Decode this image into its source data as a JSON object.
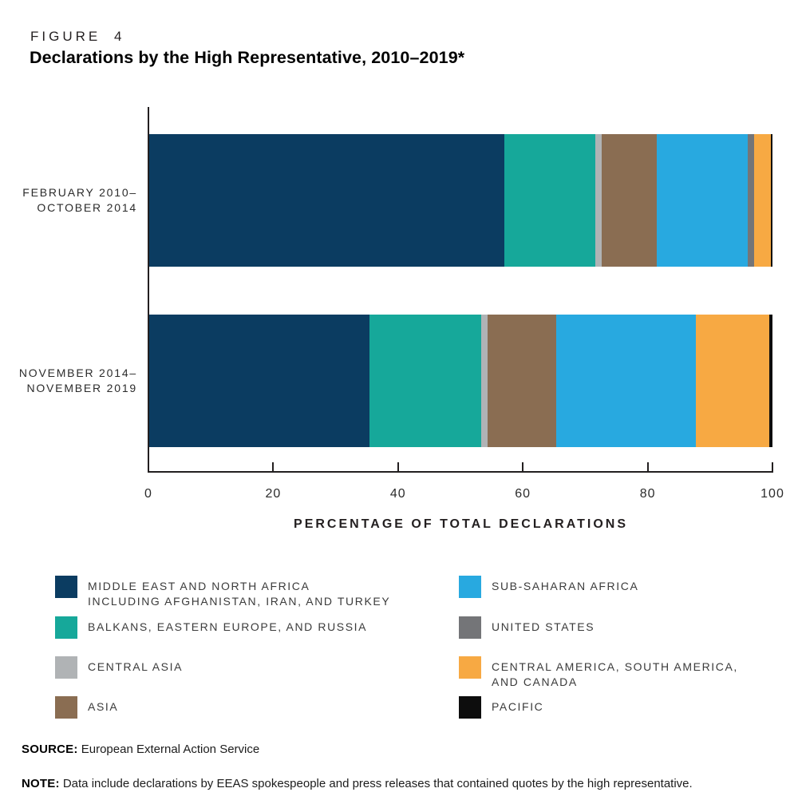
{
  "figure": {
    "label": "FIGURE 4",
    "title": "Declarations by the High Representative, 2010–2019*"
  },
  "chart_data": {
    "type": "bar",
    "orientation": "horizontal",
    "stacked": true,
    "units": "percent",
    "title": "Declarations by the High Representative, 2010–2019*",
    "xlabel": "PERCENTAGE OF TOTAL DECLARATIONS",
    "ylabel": "",
    "xlim": [
      0,
      100
    ],
    "x_ticks": [
      0,
      20,
      40,
      60,
      80,
      100
    ],
    "grid": false,
    "legend_position": "bottom",
    "categories": [
      [
        "FEBRUARY 2010–",
        "OCTOBER 2014"
      ],
      [
        "NOVEMBER 2014–",
        "NOVEMBER 2019"
      ]
    ],
    "series": [
      {
        "name": "MIDDLE EAST AND NORTH AFRICA INCLUDING AFGHANISTAN, IRAN, AND TURKEY",
        "color": "#0b3c61",
        "values": [
          57.0,
          35.4
        ]
      },
      {
        "name": "BALKANS, EASTERN EUROPE, AND RUSSIA",
        "color": "#16a89a",
        "values": [
          14.6,
          17.9
        ]
      },
      {
        "name": "CENTRAL ASIA",
        "color": "#b0b3b5",
        "values": [
          1.0,
          1.0
        ]
      },
      {
        "name": "ASIA",
        "color": "#8a6d52",
        "values": [
          8.8,
          11.0
        ]
      },
      {
        "name": "SUB-SAHARAN AFRICA",
        "color": "#28a9e0",
        "values": [
          14.6,
          22.4
        ]
      },
      {
        "name": "UNITED STATES",
        "color": "#747578",
        "values": [
          1.0,
          0.0
        ]
      },
      {
        "name": "CENTRAL AMERICA, SOUTH AMERICA, AND CANADA",
        "color": "#f7a943",
        "values": [
          2.7,
          11.8
        ]
      },
      {
        "name": "PACIFIC",
        "color": "#0d0d0d",
        "values": [
          0.3,
          0.5
        ]
      }
    ]
  },
  "legend": {
    "left_column": [
      {
        "lines": [
          "MIDDLE EAST AND NORTH AFRICA",
          "INCLUDING AFGHANISTAN, IRAN, AND TURKEY"
        ],
        "color": "#0b3c61"
      },
      {
        "lines": [
          "BALKANS, EASTERN EUROPE, AND RUSSIA"
        ],
        "color": "#16a89a"
      },
      {
        "lines": [
          "CENTRAL ASIA"
        ],
        "color": "#b0b3b5"
      },
      {
        "lines": [
          "ASIA"
        ],
        "color": "#8a6d52"
      }
    ],
    "right_column": [
      {
        "lines": [
          "SUB-SAHARAN AFRICA"
        ],
        "color": "#28a9e0"
      },
      {
        "lines": [
          "UNITED STATES"
        ],
        "color": "#747578"
      },
      {
        "lines": [
          "CENTRAL AMERICA, SOUTH AMERICA,",
          "AND CANADA"
        ],
        "color": "#f7a943"
      },
      {
        "lines": [
          "PACIFIC"
        ],
        "color": "#0d0d0d"
      }
    ]
  },
  "source": {
    "label": "SOURCE:",
    "text": "European External Action Service"
  },
  "note": {
    "label": "NOTE:",
    "text": "Data include declarations by EEAS spokespeople and press releases that contained quotes by the high representative."
  }
}
